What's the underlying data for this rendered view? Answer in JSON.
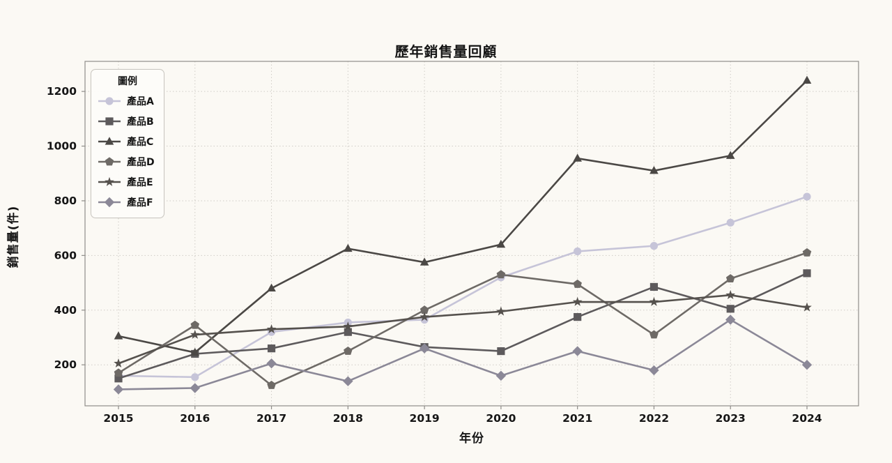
{
  "chart_data": {
    "type": "line",
    "title": "歷年銷售量回顧",
    "xlabel": "年份",
    "ylabel": "銷售量(件)",
    "legend_title": "圖例",
    "legend_position": "upper left",
    "grid": "dotted",
    "categories": [
      "2015",
      "2016",
      "2017",
      "2018",
      "2019",
      "2020",
      "2021",
      "2022",
      "2023",
      "2024"
    ],
    "yticks": [
      200,
      400,
      600,
      800,
      1000,
      1200
    ],
    "ylim": [
      50,
      1310
    ],
    "series": [
      {
        "name": "產品A",
        "marker": "circle",
        "color": "#c6c4d8",
        "values": [
          160,
          155,
          320,
          355,
          365,
          520,
          615,
          635,
          720,
          815
        ]
      },
      {
        "name": "產品B",
        "marker": "square",
        "color": "#5d5a5c",
        "values": [
          150,
          240,
          260,
          320,
          265,
          250,
          375,
          485,
          405,
          535
        ]
      },
      {
        "name": "產品C",
        "marker": "triangle",
        "color": "#4b4845",
        "values": [
          305,
          245,
          480,
          625,
          575,
          640,
          955,
          910,
          965,
          1240
        ]
      },
      {
        "name": "產品D",
        "marker": "pentagon",
        "color": "#6e6a66",
        "values": [
          170,
          345,
          125,
          250,
          400,
          530,
          495,
          310,
          515,
          610
        ]
      },
      {
        "name": "產品E",
        "marker": "star",
        "color": "#55514d",
        "values": [
          205,
          310,
          330,
          340,
          375,
          395,
          430,
          430,
          455,
          410
        ]
      },
      {
        "name": "產品F",
        "marker": "diamond",
        "color": "#8b8897",
        "values": [
          110,
          115,
          205,
          140,
          260,
          160,
          250,
          180,
          365,
          200
        ]
      }
    ],
    "colors": {
      "background": "#fbf9f4",
      "gridline": "#cfccc6",
      "spine": "#8f8d89",
      "text": "#151515"
    }
  }
}
